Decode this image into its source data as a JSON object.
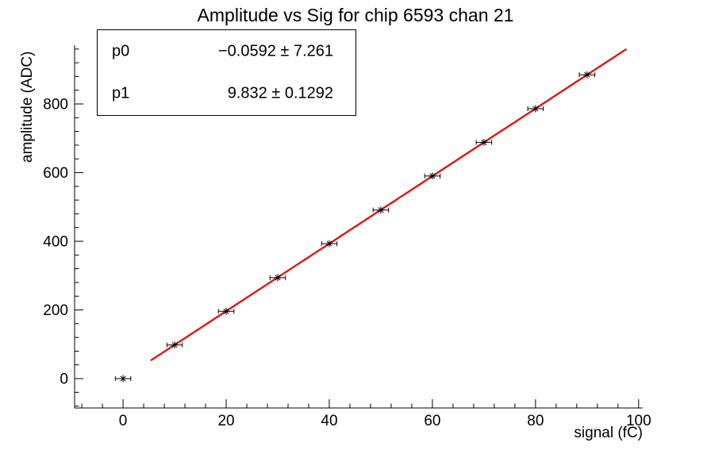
{
  "page": {
    "background": "#ffffff",
    "foreground": "#000000"
  },
  "chart_data": {
    "type": "scatter",
    "title": "Amplitude vs Sig for chip 6593 chan 21",
    "xlabel": "signal (fC)",
    "ylabel": "amplitude (ADC)",
    "xlim": [
      -9.4,
      100.8
    ],
    "ylim": [
      -85.5,
      971
    ],
    "grid": false,
    "legend_position": "none",
    "x_major_ticks": [
      0,
      20,
      40,
      60,
      80,
      100
    ],
    "x_minor_step": 4,
    "y_major_ticks": [
      0,
      200,
      400,
      600,
      800
    ],
    "y_minor_step": 40,
    "points": {
      "x": [
        0,
        10,
        20,
        30,
        40,
        50,
        60,
        70,
        80,
        90
      ],
      "y": [
        0,
        98,
        196,
        294,
        393,
        491,
        590,
        688,
        786,
        885
      ],
      "xerr": 1.5,
      "marker_style": "star-with-xerr",
      "marker_color": "#000000"
    },
    "fit": {
      "type": "linear",
      "p0": -0.0592,
      "p1": 9.832,
      "p0_err": 7.261,
      "p1_err": 0.1292,
      "x_range": [
        5.5,
        97.5
      ],
      "color": "#e21411",
      "width": 2.4
    }
  },
  "stats_box": {
    "rows": [
      {
        "label": "p0",
        "value": "−0.0592 ± 7.261"
      },
      {
        "label": "p1",
        "value": "9.832 ± 0.1292"
      }
    ]
  }
}
